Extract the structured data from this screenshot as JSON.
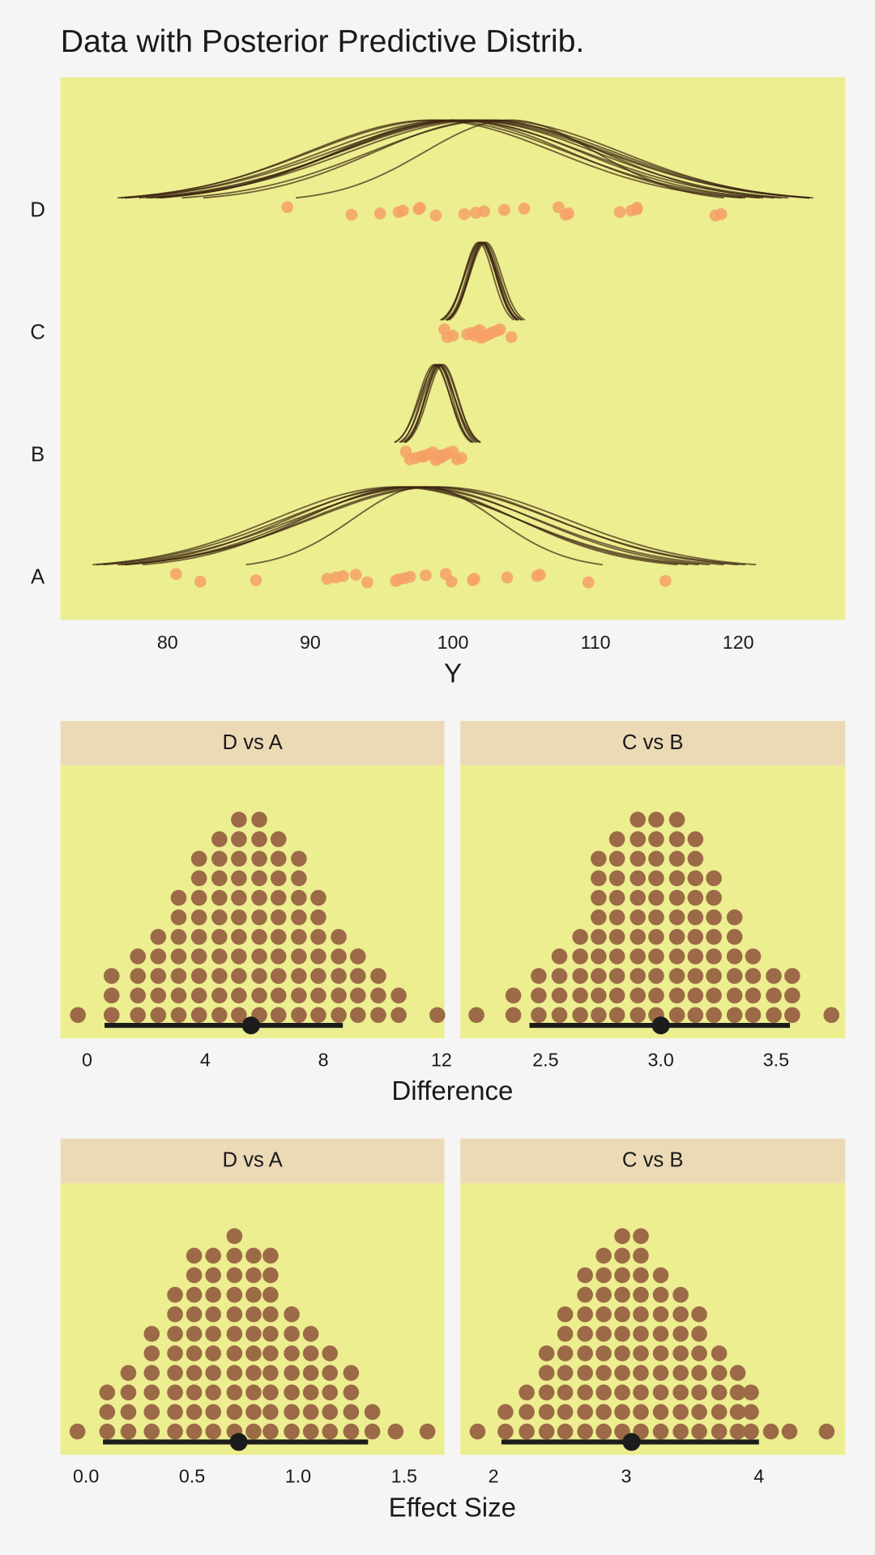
{
  "chart_data": [
    {
      "type": "posterior",
      "title": "Data with Posterior Predictive Distrib.",
      "xlabel": "Y",
      "categories": [
        "A",
        "B",
        "C",
        "D"
      ],
      "points": [
        [
          80.6,
          82.3,
          86.2,
          91.2,
          91.8,
          92.3,
          93.2,
          94.0,
          96.0,
          96.2,
          96.6,
          97.0,
          98.1,
          99.5,
          99.9,
          101.4,
          101.5,
          103.8,
          105.9,
          106.1,
          109.5,
          114.9
        ],
        [
          96.7,
          97.0,
          97.4,
          97.8,
          98.1,
          98.4,
          98.6,
          98.8,
          99.0,
          99.2,
          99.3,
          99.5,
          99.7,
          100.0,
          100.3,
          100.6,
          97.9,
          99.1
        ],
        [
          99.4,
          99.6,
          100.0,
          101.0,
          101.3,
          101.7,
          101.9,
          102.0,
          102.2,
          102.4,
          102.6,
          102.8,
          103.1,
          103.3,
          104.1,
          101.5
        ],
        [
          88.4,
          92.9,
          94.9,
          96.2,
          96.5,
          97.6,
          97.7,
          98.8,
          100.8,
          101.6,
          102.2,
          103.6,
          105.0,
          107.4,
          107.9,
          108.1,
          111.7,
          112.5,
          112.9,
          112.9,
          118.4,
          118.8
        ]
      ],
      "curves": [
        [
          {
            "mu": 96,
            "sigma": 8.5
          },
          {
            "mu": 97,
            "sigma": 8.8
          },
          {
            "mu": 98,
            "sigma": 9
          },
          {
            "mu": 98.5,
            "sigma": 8.6
          },
          {
            "mu": 97.5,
            "sigma": 8.2
          },
          {
            "mu": 99,
            "sigma": 8.9
          },
          {
            "mu": 96.5,
            "sigma": 8.0
          },
          {
            "mu": 98,
            "sigma": 5
          },
          {
            "mu": 97,
            "sigma": 7.5
          }
        ],
        [
          {
            "mu": 99,
            "sigma": 1.1
          },
          {
            "mu": 98.8,
            "sigma": 1.0
          },
          {
            "mu": 99.2,
            "sigma": 1.1
          },
          {
            "mu": 98.9,
            "sigma": 1.2
          },
          {
            "mu": 99.1,
            "sigma": 1.0
          },
          {
            "mu": 98.7,
            "sigma": 1.1
          },
          {
            "mu": 99.3,
            "sigma": 1.05
          },
          {
            "mu": 99.0,
            "sigma": 0.95
          }
        ],
        [
          {
            "mu": 102,
            "sigma": 1.0
          },
          {
            "mu": 102.2,
            "sigma": 1.05
          },
          {
            "mu": 101.9,
            "sigma": 1.1
          },
          {
            "mu": 102.1,
            "sigma": 0.95
          },
          {
            "mu": 101.8,
            "sigma": 1.0
          },
          {
            "mu": 102.3,
            "sigma": 1.1
          },
          {
            "mu": 102,
            "sigma": 1.15
          },
          {
            "mu": 102.1,
            "sigma": 1.0
          }
        ],
        [
          {
            "mu": 100,
            "sigma": 9.2
          },
          {
            "mu": 101,
            "sigma": 9.0
          },
          {
            "mu": 102,
            "sigma": 9.3
          },
          {
            "mu": 99,
            "sigma": 9.0
          },
          {
            "mu": 103,
            "sigma": 8.8
          },
          {
            "mu": 100.5,
            "sigma": 8.5
          },
          {
            "mu": 101.5,
            "sigma": 9.4
          },
          {
            "mu": 98.5,
            "sigma": 8.7
          },
          {
            "mu": 102.5,
            "sigma": 8.0
          },
          {
            "mu": 104,
            "sigma": 6.0
          },
          {
            "mu": 100,
            "sigma": 8.2
          },
          {
            "mu": 101,
            "sigma": 9.6
          }
        ]
      ],
      "xlim": [
        72.5,
        127.5
      ],
      "xticks": [
        80,
        90,
        100,
        110,
        120
      ],
      "panel_color": "#ecee8f",
      "point_color": "#f6a067",
      "curve_color": "#3b2410"
    },
    {
      "type": "dots",
      "title": "D vs A",
      "xlabel": "Difference",
      "x": [
        -0.31,
        0.83,
        1.72,
        2.41,
        3.1,
        3.79,
        4.48,
        5.14,
        5.83,
        6.48,
        7.17,
        7.83,
        8.52,
        9.17,
        9.86,
        10.55,
        11.86
      ],
      "counts": [
        1,
        3,
        4,
        5,
        7,
        9,
        10,
        11,
        11,
        10,
        9,
        7,
        5,
        4,
        3,
        2,
        1
      ],
      "interval": [
        0.59,
        8.66
      ],
      "point": 5.55,
      "xlim": [
        -0.9,
        12.1
      ],
      "xticks": [
        0,
        4,
        8,
        12
      ],
      "panel_color": "#ecee8f",
      "strip_color": "#ecdab7",
      "dot_color": "#9d6a48",
      "interval_color": "#1c1c1c"
    },
    {
      "type": "dots",
      "title": "C vs B",
      "x": [
        2.2,
        2.36,
        2.47,
        2.56,
        2.65,
        2.73,
        2.81,
        2.9,
        2.98,
        3.07,
        3.15,
        3.23,
        3.32,
        3.4,
        3.49,
        3.57,
        3.74
      ],
      "counts": [
        1,
        2,
        3,
        4,
        5,
        9,
        10,
        11,
        11,
        11,
        10,
        8,
        6,
        4,
        3,
        3,
        1
      ],
      "interval": [
        2.43,
        3.56
      ],
      "point": 3.0,
      "xlim": [
        2.13,
        3.8
      ],
      "xticks": [
        2.5,
        {
          "value": 3,
          "label": "3.0"
        },
        3.5
      ],
      "panel_color": "#ecee8f",
      "strip_color": "#ecdab7",
      "dot_color": "#9d6a48",
      "interval_color": "#1c1c1c"
    },
    {
      "type": "dots",
      "title": "D vs A",
      "xlabel": "Effect Size",
      "x": [
        -0.04,
        0.1,
        0.2,
        0.31,
        0.42,
        0.51,
        0.6,
        0.7,
        0.79,
        0.87,
        0.97,
        1.06,
        1.15,
        1.25,
        1.35,
        1.46,
        1.61
      ],
      "counts": [
        1,
        3,
        4,
        6,
        8,
        10,
        10,
        11,
        10,
        10,
        7,
        6,
        5,
        4,
        2,
        1,
        1
      ],
      "interval": [
        0.08,
        1.33
      ],
      "point": 0.72,
      "xlim": [
        -0.12,
        1.69
      ],
      "xticks": [
        {
          "value": 0,
          "label": "0.0"
        },
        0.5,
        {
          "value": 1,
          "label": "1.0"
        },
        1.5
      ],
      "panel_color": "#ecee8f",
      "strip_color": "#ecdab7",
      "dot_color": "#9d6a48",
      "interval_color": "#1c1c1c"
    },
    {
      "type": "dots",
      "title": "C vs B",
      "x": [
        1.88,
        2.09,
        2.25,
        2.4,
        2.54,
        2.69,
        2.83,
        2.97,
        3.11,
        3.26,
        3.41,
        3.55,
        3.7,
        3.84,
        3.94,
        4.09,
        4.23,
        4.51
      ],
      "counts": [
        1,
        2,
        3,
        5,
        7,
        9,
        10,
        11,
        11,
        9,
        8,
        7,
        5,
        4,
        3,
        1,
        1,
        1
      ],
      "interval": [
        2.06,
        4.0
      ],
      "point": 3.04,
      "xlim": [
        1.75,
        4.65
      ],
      "xticks": [
        2,
        3,
        4
      ],
      "panel_color": "#ecee8f",
      "strip_color": "#ecdab7",
      "dot_color": "#9d6a48",
      "interval_color": "#1c1c1c"
    }
  ]
}
